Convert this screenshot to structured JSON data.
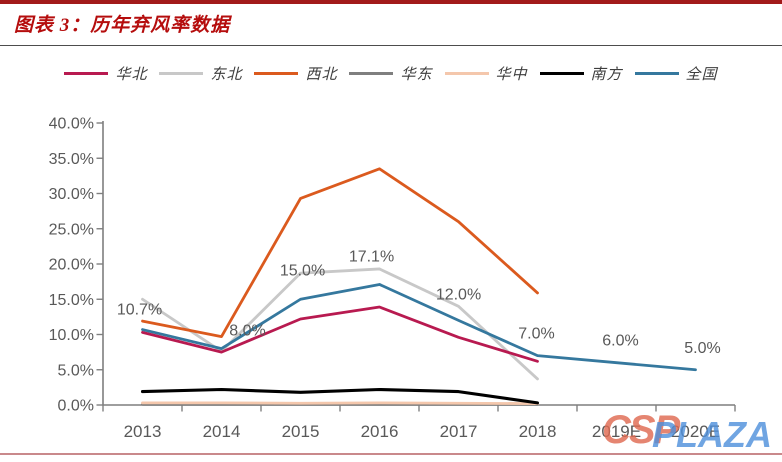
{
  "header": {
    "title": "图表 3：历年弃风率数据"
  },
  "chart_data": {
    "type": "line",
    "title": "图表 3：历年弃风率数据",
    "categories": [
      "2013",
      "2014",
      "2015",
      "2016",
      "2017",
      "2018",
      "2019E",
      "2020E"
    ],
    "y_axis": {
      "min": 0,
      "max": 40,
      "step": 5,
      "tick_labels": [
        "0.0%",
        "5.0%",
        "10.0%",
        "15.0%",
        "20.0%",
        "25.0%",
        "30.0%",
        "35.0%",
        "40.0%"
      ],
      "format": "percent"
    },
    "series": [
      {
        "name": "华北",
        "color": "#B81A50",
        "values": [
          10.3,
          7.5,
          12.2,
          13.9,
          9.6,
          6.2,
          null,
          null
        ]
      },
      {
        "name": "东北",
        "color": "#C8C8C8",
        "values": [
          15.0,
          7.6,
          18.7,
          19.3,
          14.0,
          3.7,
          null,
          null
        ]
      },
      {
        "name": "西北",
        "color": "#DB5A1E",
        "values": [
          11.9,
          9.7,
          29.3,
          33.5,
          26.0,
          15.9,
          null,
          null
        ]
      },
      {
        "name": "华东",
        "color": "#7F7F7F",
        "values": [
          0.1,
          0.1,
          0.1,
          0.1,
          0.1,
          0.1,
          null,
          null
        ]
      },
      {
        "name": "华中",
        "color": "#F4C7AC",
        "values": [
          0.3,
          0.3,
          0.25,
          0.3,
          0.25,
          0.2,
          null,
          null
        ]
      },
      {
        "name": "南方",
        "color": "#000000",
        "values": [
          1.9,
          2.2,
          1.8,
          2.2,
          1.9,
          0.3,
          null,
          null
        ]
      },
      {
        "name": "全国",
        "color": "#35789E",
        "values": [
          10.7,
          8.0,
          15.0,
          17.1,
          12.0,
          7.0,
          6.0,
          5.0
        ]
      }
    ],
    "annotations": {
      "series": "全国",
      "labels": [
        "10.7%",
        "8.0%",
        "15.0%",
        "17.1%",
        "12.0%",
        "7.0%",
        "6.0%",
        "5.0%"
      ]
    },
    "legend_position": "top",
    "grid": false
  },
  "watermark": {
    "text_left": "CSP",
    "text_right": "PLAZA",
    "color_left": "#E06B52",
    "color_right": "#4D8FDC"
  }
}
